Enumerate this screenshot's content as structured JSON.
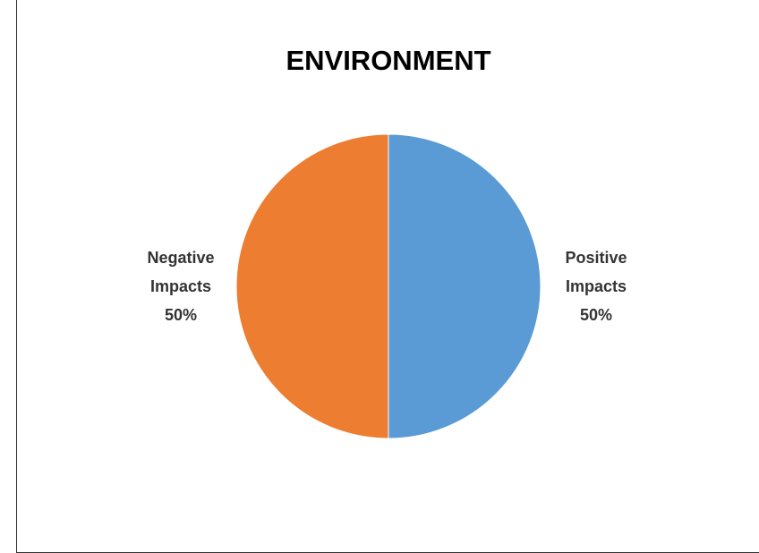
{
  "chart_data": {
    "type": "pie",
    "title": "ENVIRONMENT",
    "categories": [
      "Positive Impacts",
      "Negative Impacts"
    ],
    "values": [
      50,
      50
    ],
    "value_labels": [
      "50%",
      "50%"
    ],
    "colors": [
      "#5b9bd5",
      "#ed7d31"
    ]
  }
}
